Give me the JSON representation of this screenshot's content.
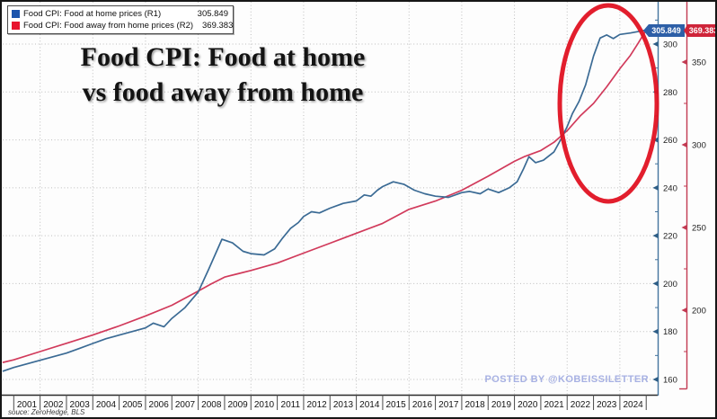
{
  "legend": {
    "items": [
      {
        "label": "Food CPI: Food at home prices (R1)",
        "value": "305.849",
        "color": "#1c54ac"
      },
      {
        "label": "Food CPI: Food away from home prices (R2)",
        "value": "369.383",
        "color": "#e8132e"
      }
    ]
  },
  "title": {
    "line1": "Food CPI: Food at home",
    "line2": "vs food away from home"
  },
  "watermark": "POSTED BY @KOBEISSILETTER",
  "source": "souce: ZeroHedge, BLS",
  "chart_data": {
    "type": "line",
    "title": "Food CPI: Food at home vs food away from home",
    "x_axis_years": [
      "2001",
      "2002",
      "2003",
      "2004",
      "2005",
      "2006",
      "2007",
      "2008",
      "2009",
      "2010",
      "2011",
      "2012",
      "2013",
      "2014",
      "2015",
      "2016",
      "2017",
      "2018",
      "2019",
      "2020",
      "2021",
      "2022",
      "2023",
      "2024"
    ],
    "x_range": [
      2000.6,
      2025.5
    ],
    "grid": "dotted",
    "legend_position": "top-left",
    "r1_axis": {
      "side": "right-inner",
      "color": "#44749e",
      "label_color": "#1d1d1d",
      "major_ticks": [
        160,
        180,
        200,
        220,
        240,
        260,
        280,
        300
      ],
      "minor_ticks": [
        170,
        190,
        210,
        230,
        250,
        270,
        290,
        310
      ],
      "visible_range": [
        154,
        318
      ]
    },
    "r2_axis": {
      "side": "right-outer",
      "color": "#c23a52",
      "label_color": "#1d1d1d",
      "major_ticks": [
        200,
        250,
        300,
        350
      ],
      "minor_ticks": [
        175,
        225,
        275,
        325
      ],
      "visible_range": [
        150,
        387
      ]
    },
    "series": [
      {
        "name": "Food CPI: Food at home prices",
        "axis": "R1",
        "color": "#3a6a94",
        "tag_color": "#2d5fa7",
        "last_value": 305.849,
        "last_label": "305.849",
        "data_name": "series-food-at-home-line",
        "points": [
          [
            2000.6,
            163.5
          ],
          [
            2001,
            165
          ],
          [
            2001.5,
            166.5
          ],
          [
            2002,
            168
          ],
          [
            2002.5,
            169.5
          ],
          [
            2003,
            171
          ],
          [
            2003.5,
            173
          ],
          [
            2004,
            175
          ],
          [
            2004.5,
            177
          ],
          [
            2005,
            178.5
          ],
          [
            2005.5,
            180
          ],
          [
            2006,
            181.5
          ],
          [
            2006.3,
            183.5
          ],
          [
            2006.7,
            182
          ],
          [
            2007,
            185.5
          ],
          [
            2007.5,
            190
          ],
          [
            2008,
            196.5
          ],
          [
            2008.4,
            206
          ],
          [
            2008.9,
            218.5
          ],
          [
            2009.3,
            217
          ],
          [
            2009.7,
            213.5
          ],
          [
            2010,
            212.5
          ],
          [
            2010.5,
            212
          ],
          [
            2010.9,
            214.5
          ],
          [
            2011.2,
            219
          ],
          [
            2011.5,
            223
          ],
          [
            2011.8,
            225.5
          ],
          [
            2012,
            228
          ],
          [
            2012.3,
            230
          ],
          [
            2012.6,
            229.5
          ],
          [
            2013,
            231.5
          ],
          [
            2013.5,
            233.5
          ],
          [
            2014,
            234.5
          ],
          [
            2014.3,
            237
          ],
          [
            2014.55,
            236.5
          ],
          [
            2014.8,
            239
          ],
          [
            2015,
            240.5
          ],
          [
            2015.4,
            242.5
          ],
          [
            2015.8,
            241.5
          ],
          [
            2016.2,
            239
          ],
          [
            2016.6,
            237.5
          ],
          [
            2017,
            236.5
          ],
          [
            2017.5,
            236
          ],
          [
            2018,
            238
          ],
          [
            2018.3,
            238.5
          ],
          [
            2018.7,
            237.5
          ],
          [
            2019,
            239.5
          ],
          [
            2019.4,
            238
          ],
          [
            2019.8,
            240
          ],
          [
            2020.1,
            242.5
          ],
          [
            2020.35,
            248
          ],
          [
            2020.55,
            253
          ],
          [
            2020.8,
            250.5
          ],
          [
            2021.1,
            251.5
          ],
          [
            2021.5,
            255
          ],
          [
            2021.8,
            261
          ],
          [
            2022,
            265.5
          ],
          [
            2022.2,
            271
          ],
          [
            2022.45,
            276
          ],
          [
            2022.7,
            283
          ],
          [
            2023,
            295
          ],
          [
            2023.25,
            302.5
          ],
          [
            2023.5,
            303.8
          ],
          [
            2023.75,
            302.3
          ],
          [
            2024,
            304
          ],
          [
            2024.4,
            304.6
          ],
          [
            2024.7,
            305.2
          ],
          [
            2025,
            305.849
          ]
        ]
      },
      {
        "name": "Food CPI: Food away from home prices",
        "axis": "R2",
        "color": "#d13a5b",
        "tag_color": "#cf2439",
        "last_value": 369.383,
        "last_label": "369.383",
        "data_name": "series-food-away-line",
        "points": [
          [
            2000.6,
            168.5
          ],
          [
            2001,
            170
          ],
          [
            2002,
            175
          ],
          [
            2003,
            180
          ],
          [
            2004,
            185
          ],
          [
            2005,
            190.5
          ],
          [
            2006,
            196.5
          ],
          [
            2007,
            203
          ],
          [
            2008,
            211.5
          ],
          [
            2008.5,
            216
          ],
          [
            2009,
            220
          ],
          [
            2009.5,
            222
          ],
          [
            2010,
            224
          ],
          [
            2011,
            228.5
          ],
          [
            2012,
            234.5
          ],
          [
            2013,
            240.5
          ],
          [
            2014,
            246.5
          ],
          [
            2015,
            252.5
          ],
          [
            2016,
            261
          ],
          [
            2017,
            266
          ],
          [
            2018,
            272.5
          ],
          [
            2019,
            281
          ],
          [
            2020,
            290
          ],
          [
            2020.4,
            293
          ],
          [
            2021,
            296.5
          ],
          [
            2021.5,
            301.5
          ],
          [
            2022,
            308.5
          ],
          [
            2022.5,
            317.5
          ],
          [
            2023,
            325
          ],
          [
            2023.5,
            335
          ],
          [
            2024,
            346
          ],
          [
            2024.4,
            354
          ],
          [
            2024.7,
            361.5
          ],
          [
            2025,
            369.383
          ]
        ]
      }
    ],
    "annotation": {
      "type": "ellipse",
      "color": "#e01222",
      "note": "red ellipse highlighting the 2021-2024 surge of both series"
    }
  }
}
